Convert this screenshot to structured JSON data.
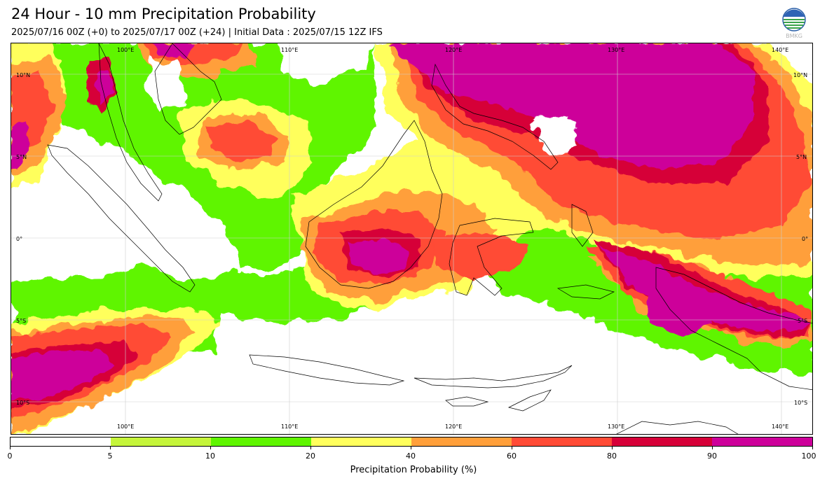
{
  "header": {
    "title": "24 Hour - 10 mm Precipitation Probability",
    "subtitle": "2025/07/16 00Z (+0) to 2025/07/17 00Z (+24) | Initial Data : 2025/07/15 12Z IFS"
  },
  "logo": {
    "icon": "bmkg-logo-icon",
    "text": "BMKG"
  },
  "map": {
    "top_lon_labels": [
      "100°E",
      "110°E",
      "120°E",
      "130°E",
      "140°E"
    ],
    "bottom_lon_labels": [
      "100°E",
      "110°E",
      "120°E",
      "130°E",
      "140°E"
    ],
    "left_lat_labels": [
      "10°N",
      "5°N",
      "0°",
      "5°S",
      "10°S"
    ],
    "right_lat_labels": [
      "10°N",
      "5°N",
      "0°",
      "5°S",
      "10°S"
    ]
  },
  "colorbar": {
    "title": "Precipitation Probability (%)",
    "ticks": [
      "0",
      "5",
      "10",
      "20",
      "40",
      "60",
      "80",
      "90",
      "100"
    ],
    "colors": [
      "#ffffff",
      "#c5f53a",
      "#5ff500",
      "#ffff5c",
      "#ff9f3a",
      "#ff4b36",
      "#d60038",
      "#cd009a"
    ]
  }
}
